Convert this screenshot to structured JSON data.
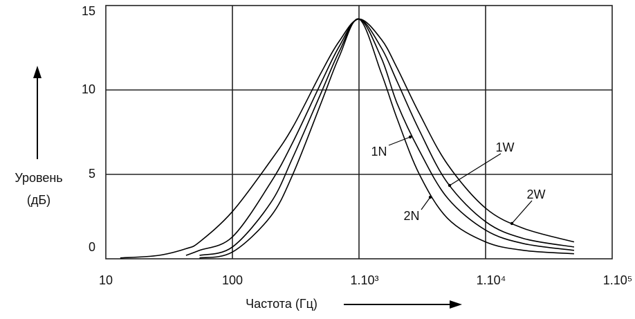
{
  "chart_data": {
    "type": "line",
    "ylabel": [
      "Уровень",
      "(дБ)"
    ],
    "xlabel": "Частота (Гц)",
    "xscale": "log",
    "grid": true,
    "xlim": [
      10,
      100000
    ],
    "ylim": [
      0,
      15
    ],
    "xticks": [
      10,
      100,
      {
        "value": 1000,
        "label": "1.10³"
      },
      {
        "value": 10000,
        "label": "1.10⁴"
      },
      {
        "value": 100000,
        "label": "1.10⁵"
      }
    ],
    "yticks": [
      0,
      5,
      10,
      15
    ],
    "x": [
      13,
      26,
      43,
      55,
      100,
      200,
      300,
      500,
      700,
      1000,
      1500,
      2000,
      3000,
      5000,
      10000,
      20000,
      50000
    ],
    "series": [
      {
        "name": "1N",
        "color": "#000000",
        "values": [
          null,
          null,
          null,
          0.2,
          0.7,
          3.3,
          6.0,
          9.8,
          12.3,
          14.2,
          11.9,
          9.2,
          6.4,
          3.6,
          1.7,
          0.9,
          0.5
        ]
      },
      {
        "name": "2N",
        "color": "#000000",
        "values": [
          null,
          null,
          null,
          0.05,
          0.4,
          2.5,
          5.0,
          9.2,
          12.0,
          14.2,
          11.0,
          8.3,
          5.0,
          2.4,
          1.0,
          0.5,
          0.3
        ]
      },
      {
        "name": "1W",
        "color": "#000000",
        "values": [
          null,
          null,
          0.2,
          0.5,
          1.3,
          4.5,
          6.9,
          10.4,
          12.6,
          14.2,
          12.5,
          10.5,
          7.6,
          4.5,
          2.2,
          1.2,
          0.7
        ]
      },
      {
        "name": "2W",
        "color": "#000000",
        "values": [
          0.05,
          0.2,
          0.6,
          1.0,
          2.8,
          5.8,
          7.8,
          11.0,
          12.9,
          14.2,
          13.0,
          11.3,
          8.6,
          5.6,
          3.0,
          1.8,
          1.0
        ]
      }
    ]
  }
}
